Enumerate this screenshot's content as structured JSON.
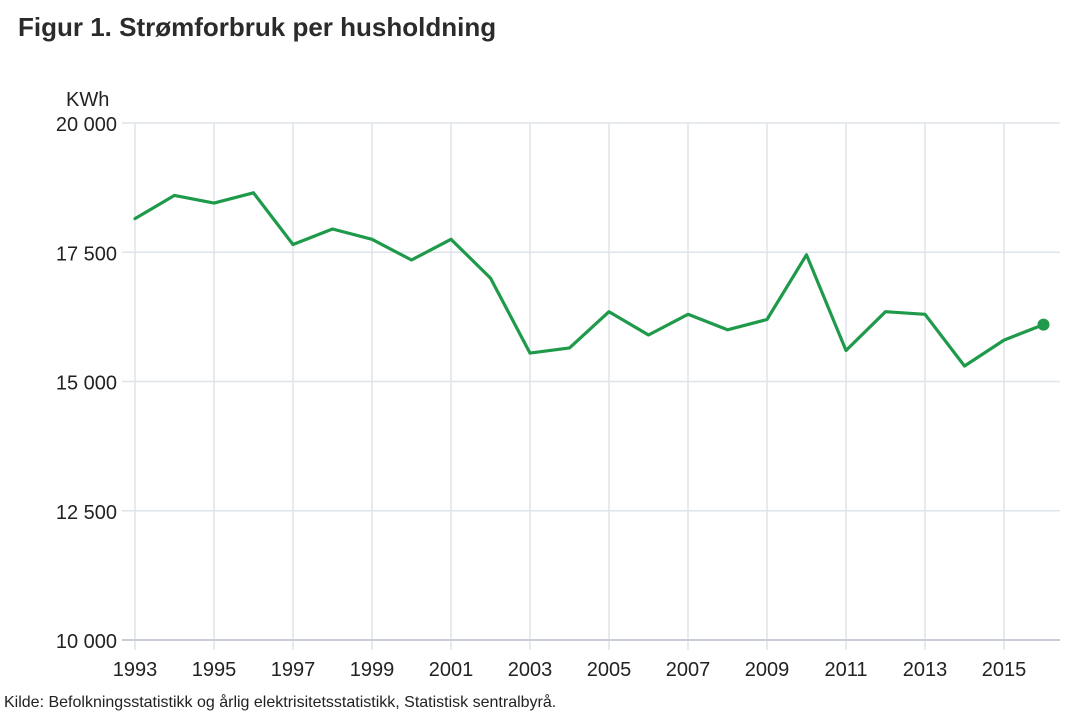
{
  "title": "Figur 1. Strømforbruk per husholdning",
  "source": "Kilde: Befolkningsstatistikk og årlig elektrisitetsstatistikk, Statistisk sentralbyrå.",
  "colors": {
    "line": "#1e9a4a",
    "grid": "#dfe4ea",
    "axis": "#c9ced6"
  },
  "chart_data": {
    "type": "line",
    "title": "Figur 1. Strømforbruk per husholdning",
    "ylabel": "KWh",
    "xlabel": "",
    "ylim": [
      10000,
      20000
    ],
    "yticks": [
      10000,
      12500,
      15000,
      17500,
      20000
    ],
    "ytick_labels": [
      "10 000",
      "12 500",
      "15 000",
      "17 500",
      "20 000"
    ],
    "xticks": [
      1993,
      1995,
      1997,
      1999,
      2001,
      2003,
      2005,
      2007,
      2009,
      2011,
      2013,
      2015
    ],
    "xlim": [
      1993,
      2016
    ],
    "grid": true,
    "legend": "none",
    "series": [
      {
        "color": "#1e9a4a",
        "x": [
          1993,
          1994,
          1995,
          1996,
          1997,
          1998,
          1999,
          2000,
          2001,
          2002,
          2003,
          2004,
          2005,
          2006,
          2007,
          2008,
          2009,
          2010,
          2011,
          2012,
          2013,
          2014,
          2015,
          2016
        ],
        "values": [
          18150,
          18600,
          18450,
          18650,
          17650,
          17950,
          17750,
          17350,
          17750,
          17000,
          15550,
          15650,
          16350,
          15900,
          16300,
          16000,
          16200,
          17450,
          15600,
          16350,
          16300,
          15300,
          15800,
          16100
        ]
      }
    ]
  }
}
